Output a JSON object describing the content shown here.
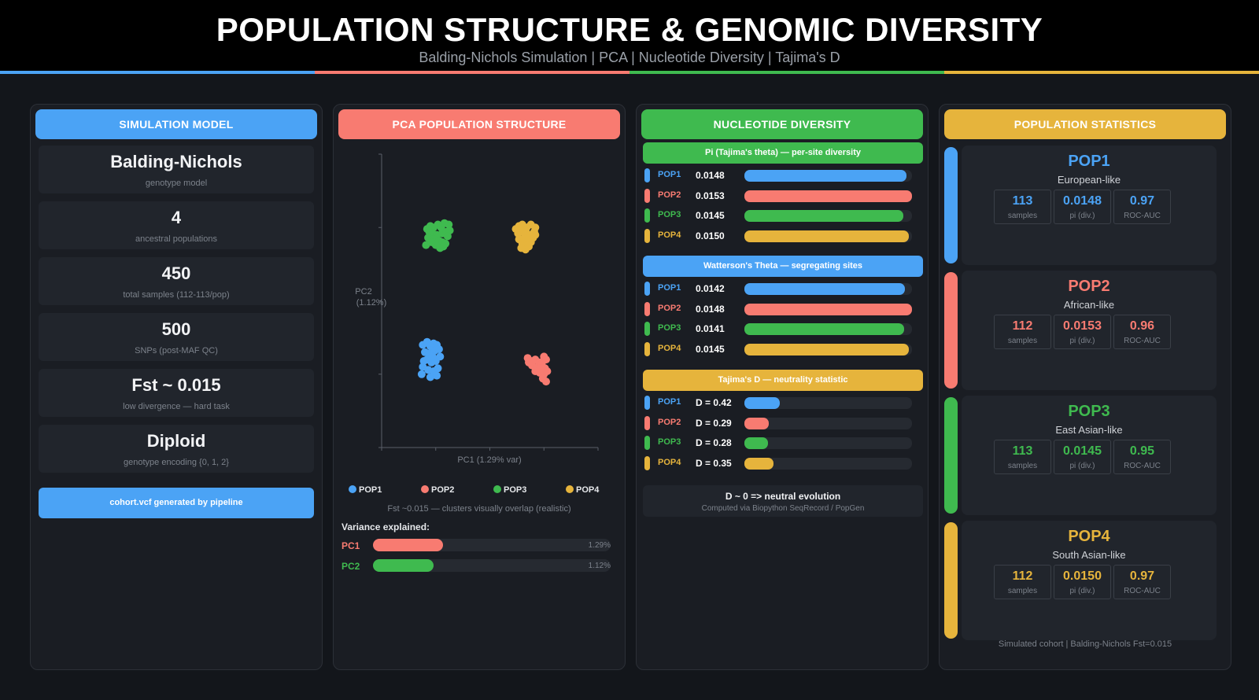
{
  "header": {
    "title": "POPULATION STRUCTURE & GENOMIC DIVERSITY",
    "subtitle": "Balding-Nichols Simulation  |  PCA  |  Nucleotide Diversity  |  Tajima's D"
  },
  "colors": {
    "pop1": "#4ba3f5",
    "pop2": "#f87b71",
    "pop3": "#3fba4f",
    "pop4": "#e6b43c"
  },
  "sim": {
    "header": "SIMULATION MODEL",
    "cards": [
      {
        "big": "Balding-Nichols",
        "small": "genotype model"
      },
      {
        "big": "4",
        "small": "ancestral populations"
      },
      {
        "big": "450",
        "small": "total samples (112-113/pop)"
      },
      {
        "big": "500",
        "small": "SNPs (post-MAF QC)"
      },
      {
        "big": "Fst ~ 0.015",
        "small": "low divergence  — hard task"
      },
      {
        "big": "Diploid",
        "small": "genotype encoding {0, 1, 2}"
      }
    ],
    "vcf_label": "cohort.vcf  generated by pipeline"
  },
  "pca": {
    "header": "PCA  POPULATION STRUCTURE",
    "note": "Fst ~0.015  — clusters visually overlap (realistic)",
    "variance_title": "Variance explained:",
    "variance": [
      {
        "label": "PC1",
        "value": 1.29,
        "text": "1.29%"
      },
      {
        "label": "PC2",
        "value": 1.12,
        "text": "1.12%"
      }
    ]
  },
  "chart_data": {
    "type": "scatter",
    "title": "PCA  POPULATION STRUCTURE",
    "xlabel": "PC1 (1.29% var)",
    "ylabel": "PC2 (1.12%)",
    "ylabel_line1": "PC2",
    "ylabel_line2": "(1.12%)",
    "xlim": [
      -1,
      1
    ],
    "ylim": [
      -1,
      1
    ],
    "grid": false,
    "legend_position": "bottom",
    "series": [
      {
        "name": "POP1",
        "color": "#4ba3f5",
        "points": [
          [
            -0.62,
            -0.3
          ],
          [
            -0.58,
            -0.28
          ],
          [
            -0.55,
            -0.31
          ],
          [
            -0.52,
            -0.29
          ],
          [
            -0.49,
            -0.3
          ],
          [
            -0.6,
            -0.35
          ],
          [
            -0.56,
            -0.36
          ],
          [
            -0.51,
            -0.34
          ],
          [
            -0.47,
            -0.33
          ],
          [
            -0.58,
            -0.4
          ],
          [
            -0.54,
            -0.42
          ],
          [
            -0.5,
            -0.41
          ],
          [
            -0.62,
            -0.45
          ],
          [
            -0.57,
            -0.47
          ],
          [
            -0.52,
            -0.48
          ],
          [
            -0.48,
            -0.46
          ],
          [
            -0.63,
            -0.5
          ],
          [
            -0.55,
            -0.52
          ],
          [
            -0.49,
            -0.51
          ],
          [
            -0.46,
            -0.38
          ],
          [
            -0.53,
            -0.38
          ],
          [
            -0.61,
            -0.41
          ]
        ]
      },
      {
        "name": "POP2",
        "color": "#f87b71",
        "points": [
          [
            0.35,
            -0.39
          ],
          [
            0.38,
            -0.41
          ],
          [
            0.42,
            -0.4
          ],
          [
            0.46,
            -0.42
          ],
          [
            0.5,
            -0.38
          ],
          [
            0.52,
            -0.4
          ],
          [
            0.39,
            -0.44
          ],
          [
            0.44,
            -0.45
          ],
          [
            0.48,
            -0.43
          ],
          [
            0.51,
            -0.46
          ],
          [
            0.42,
            -0.48
          ],
          [
            0.46,
            -0.49
          ],
          [
            0.5,
            -0.5
          ],
          [
            0.49,
            -0.53
          ],
          [
            0.52,
            -0.55
          ],
          [
            0.36,
            -0.42
          ],
          [
            0.47,
            -0.46
          ],
          [
            0.53,
            -0.48
          ]
        ]
      },
      {
        "name": "POP3",
        "color": "#3fba4f",
        "points": [
          [
            -0.58,
            0.49
          ],
          [
            -0.55,
            0.51
          ],
          [
            -0.52,
            0.5
          ],
          [
            -0.48,
            0.52
          ],
          [
            -0.45,
            0.5
          ],
          [
            -0.42,
            0.53
          ],
          [
            -0.38,
            0.52
          ],
          [
            -0.56,
            0.47
          ],
          [
            -0.53,
            0.46
          ],
          [
            -0.49,
            0.45
          ],
          [
            -0.44,
            0.46
          ],
          [
            -0.4,
            0.47
          ],
          [
            -0.37,
            0.48
          ],
          [
            -0.57,
            0.43
          ],
          [
            -0.52,
            0.42
          ],
          [
            -0.47,
            0.41
          ],
          [
            -0.44,
            0.4
          ],
          [
            -0.41,
            0.39
          ],
          [
            -0.5,
            0.38
          ],
          [
            -0.46,
            0.36
          ],
          [
            -0.43,
            0.37
          ],
          [
            -0.59,
            0.38
          ],
          [
            -0.54,
            0.4
          ],
          [
            -0.39,
            0.44
          ]
        ]
      },
      {
        "name": "POP4",
        "color": "#e6b43c",
        "points": [
          [
            0.24,
            0.49
          ],
          [
            0.27,
            0.51
          ],
          [
            0.3,
            0.52
          ],
          [
            0.34,
            0.5
          ],
          [
            0.38,
            0.52
          ],
          [
            0.42,
            0.5
          ],
          [
            0.26,
            0.46
          ],
          [
            0.3,
            0.47
          ],
          [
            0.34,
            0.46
          ],
          [
            0.38,
            0.45
          ],
          [
            0.41,
            0.47
          ],
          [
            0.32,
            0.43
          ],
          [
            0.36,
            0.42
          ],
          [
            0.4,
            0.43
          ],
          [
            0.3,
            0.39
          ],
          [
            0.34,
            0.38
          ],
          [
            0.38,
            0.4
          ],
          [
            0.29,
            0.36
          ],
          [
            0.33,
            0.35
          ],
          [
            0.36,
            0.37
          ],
          [
            0.27,
            0.42
          ],
          [
            0.42,
            0.45
          ]
        ]
      }
    ]
  },
  "diversity": {
    "header": "NUCLEOTIDE DIVERSITY",
    "sections": [
      {
        "title": "Pi  (Tajima's theta)  — per-site diversity",
        "color": "#3fba4f",
        "max": 0.0153,
        "rows": [
          {
            "pop": "POP1",
            "value": 0.0148,
            "text": "0.0148"
          },
          {
            "pop": "POP2",
            "value": 0.0153,
            "text": "0.0153"
          },
          {
            "pop": "POP3",
            "value": 0.0145,
            "text": "0.0145"
          },
          {
            "pop": "POP4",
            "value": 0.015,
            "text": "0.0150"
          }
        ]
      },
      {
        "title": "Watterson's Theta  — segregating sites",
        "color": "#4ba3f5",
        "max": 0.0148,
        "rows": [
          {
            "pop": "POP1",
            "value": 0.0142,
            "text": "0.0142"
          },
          {
            "pop": "POP2",
            "value": 0.0148,
            "text": "0.0148"
          },
          {
            "pop": "POP3",
            "value": 0.0141,
            "text": "0.0141"
          },
          {
            "pop": "POP4",
            "value": 0.0145,
            "text": "0.0145"
          }
        ]
      },
      {
        "title": "Tajima's D  — neutrality statistic",
        "color": "#e6b43c",
        "max": 2.0,
        "rows": [
          {
            "pop": "POP1",
            "value": 0.42,
            "text": "D = 0.42"
          },
          {
            "pop": "POP2",
            "value": 0.29,
            "text": "D = 0.29"
          },
          {
            "pop": "POP3",
            "value": 0.28,
            "text": "D = 0.28"
          },
          {
            "pop": "POP4",
            "value": 0.35,
            "text": "D = 0.35"
          }
        ]
      }
    ],
    "note_main": "D ~ 0  => neutral evolution",
    "note_sub": "Computed via Biopython SeqRecord / PopGen"
  },
  "stats": {
    "header": "POPULATION STATISTICS",
    "pops": [
      {
        "name": "POP1",
        "desc": "European-like",
        "samples": "113",
        "pi": "0.0148",
        "auc": "0.97"
      },
      {
        "name": "POP2",
        "desc": "African-like",
        "samples": "112",
        "pi": "0.0153",
        "auc": "0.96"
      },
      {
        "name": "POP3",
        "desc": "East Asian-like",
        "samples": "113",
        "pi": "0.0145",
        "auc": "0.95"
      },
      {
        "name": "POP4",
        "desc": "South Asian-like",
        "samples": "112",
        "pi": "0.0150",
        "auc": "0.97"
      }
    ],
    "labels": {
      "samples": "samples",
      "pi": "pi (div.)",
      "auc": "ROC-AUC"
    },
    "footer": "Simulated cohort  |  Balding-Nichols Fst=0.015"
  }
}
